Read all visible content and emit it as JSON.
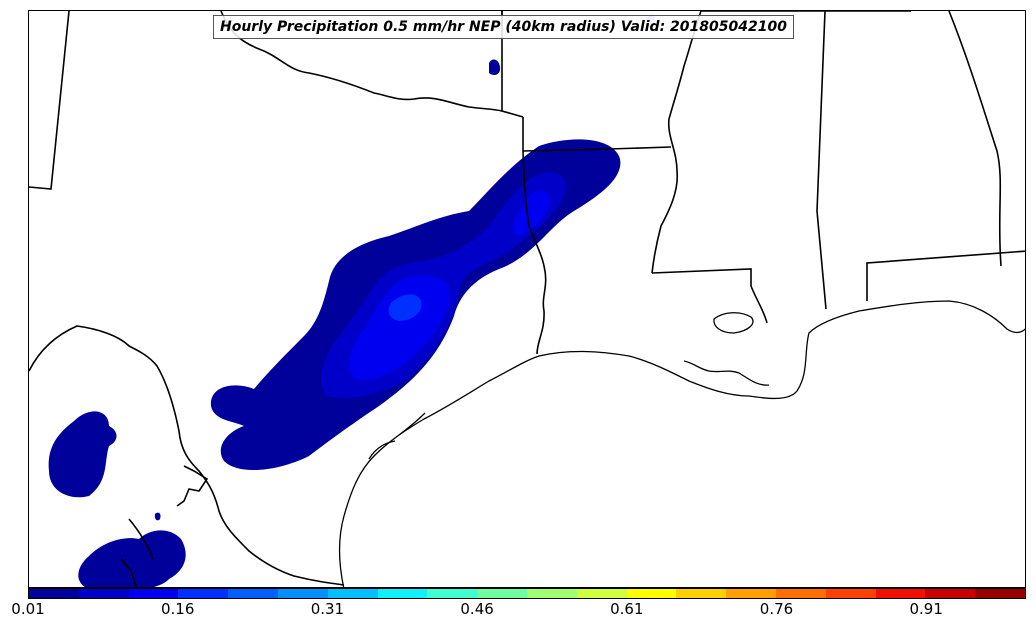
{
  "title": "Hourly Precipitation 0.5 mm/hr NEP (40km radius) Valid: 201805042100",
  "colorbar": {
    "colors": [
      "#00009a",
      "#0000c8",
      "#0000f0",
      "#0030ff",
      "#0060ff",
      "#0090ff",
      "#00c0ff",
      "#10f0ff",
      "#40ffd0",
      "#70ffa0",
      "#a0ff70",
      "#d0ff40",
      "#ffff00",
      "#ffd000",
      "#ffa000",
      "#ff7000",
      "#ff4000",
      "#f01000",
      "#c80000",
      "#960000"
    ],
    "tick_labels": [
      "0.01",
      "0.16",
      "0.31",
      "0.46",
      "0.61",
      "0.76",
      "0.91"
    ]
  },
  "legend_colors": {
    "state_lines": "#000000",
    "coast": "#000000",
    "precip_low": "#00009a",
    "precip_mid": "#0000c8",
    "precip_high": "#0000f0",
    "precip_peak": "#0030ff"
  }
}
